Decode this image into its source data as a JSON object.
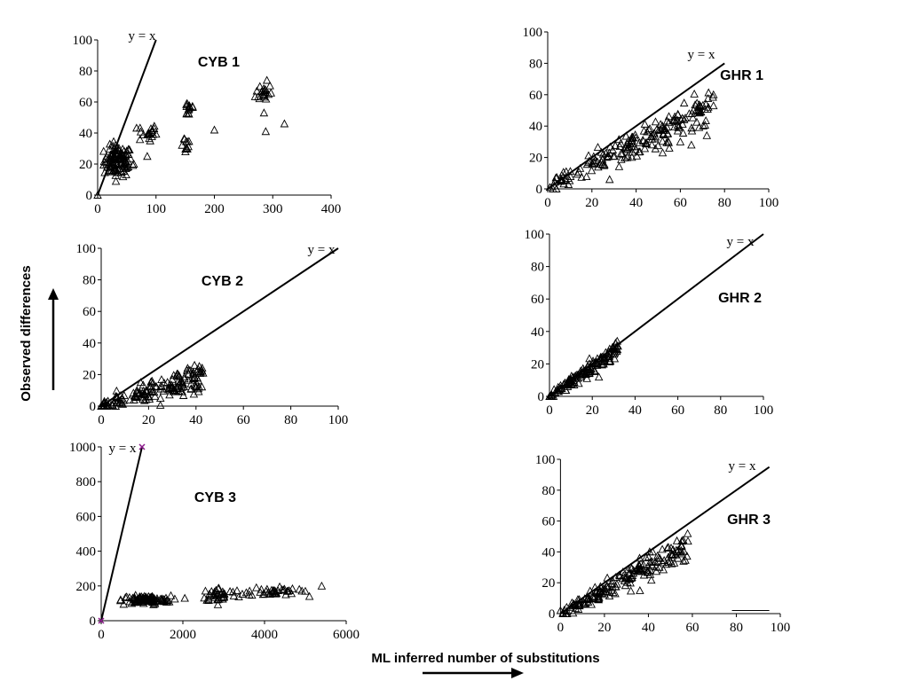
{
  "figure": {
    "ylabel": "Observed differences",
    "xlabel": "ML inferred number of substitutions"
  },
  "chart_data": [
    {
      "id": "cyb1",
      "type": "scatter",
      "title": "CYB 1",
      "ref_label": "y = x",
      "xlim": [
        0,
        400
      ],
      "ylim": [
        0,
        100
      ],
      "xticks": [
        "0",
        "100",
        "200",
        "300",
        "400"
      ],
      "yticks": [
        "0",
        "20",
        "40",
        "60",
        "80",
        "100"
      ],
      "ref_line": [
        [
          0,
          0
        ],
        [
          100,
          100
        ]
      ],
      "clusters": [
        {
          "cx": 35,
          "cy": 22,
          "sx": 12,
          "sy": 5,
          "n": 110
        },
        {
          "cx": 85,
          "cy": 40,
          "sx": 8,
          "sy": 3,
          "n": 20
        },
        {
          "cx": 150,
          "cy": 33,
          "sx": 5,
          "sy": 3,
          "n": 12
        },
        {
          "cx": 157,
          "cy": 56,
          "sx": 5,
          "sy": 3,
          "n": 15
        },
        {
          "cx": 285,
          "cy": 66,
          "sx": 7,
          "sy": 3,
          "n": 18
        }
      ],
      "points": [
        [
          0,
          0
        ],
        [
          200,
          42
        ],
        [
          278,
          70
        ],
        [
          290,
          74
        ],
        [
          285,
          53
        ],
        [
          288,
          41
        ],
        [
          320,
          46
        ],
        [
          85,
          25
        ],
        [
          90,
          35
        ],
        [
          62,
          20
        ]
      ]
    },
    {
      "id": "ghr1",
      "type": "scatter",
      "title": "GHR 1",
      "ref_label": "y = x",
      "xlim": [
        0,
        100
      ],
      "ylim": [
        0,
        100
      ],
      "xticks": [
        "0",
        "20",
        "40",
        "60",
        "80",
        "100"
      ],
      "yticks": [
        "0",
        "20",
        "40",
        "60",
        "80",
        "100"
      ],
      "ref_line": [
        [
          0,
          0
        ],
        [
          80,
          80
        ]
      ],
      "band": {
        "x0": 2,
        "x1": 75,
        "slope": 0.73,
        "spread": 3.5,
        "n": 190
      },
      "points": [
        [
          1,
          1
        ],
        [
          3,
          2
        ],
        [
          28,
          6
        ],
        [
          52,
          23
        ],
        [
          55,
          26
        ],
        [
          60,
          30
        ],
        [
          65,
          28
        ],
        [
          72,
          34
        ],
        [
          75,
          53
        ],
        [
          75,
          60
        ],
        [
          68,
          50
        ],
        [
          38,
          30
        ]
      ]
    },
    {
      "id": "cyb2",
      "type": "scatter",
      "title": "CYB 2",
      "ref_label": "y = x",
      "xlim": [
        0,
        100
      ],
      "ylim": [
        0,
        100
      ],
      "xticks": [
        "0",
        "20",
        "40",
        "60",
        "80",
        "100"
      ],
      "yticks": [
        "0",
        "20",
        "40",
        "60",
        "80",
        "100"
      ],
      "ref_line": [
        [
          0,
          0
        ],
        [
          100,
          100
        ]
      ],
      "band": {
        "x0": 0,
        "x1": 43,
        "slope": 0.45,
        "spread": 3,
        "n": 160
      },
      "points": [
        [
          0,
          0
        ],
        [
          40,
          12
        ],
        [
          42,
          22
        ],
        [
          43,
          21
        ],
        [
          25,
          5
        ],
        [
          30,
          17
        ]
      ]
    },
    {
      "id": "ghr2",
      "type": "scatter",
      "title": "GHR 2",
      "ref_label": "y = x",
      "xlim": [
        0,
        100
      ],
      "ylim": [
        0,
        100
      ],
      "xticks": [
        "0",
        "20",
        "40",
        "60",
        "80",
        "100"
      ],
      "yticks": [
        "0",
        "20",
        "40",
        "60",
        "80",
        "100"
      ],
      "ref_line": [
        [
          0,
          0
        ],
        [
          100,
          100
        ]
      ],
      "band": {
        "x0": 0,
        "x1": 32,
        "slope": 0.93,
        "spread": 1.8,
        "n": 130
      },
      "points": [
        [
          0,
          0
        ],
        [
          1,
          1
        ],
        [
          30,
          30
        ],
        [
          32,
          31
        ]
      ]
    },
    {
      "id": "cyb3",
      "type": "scatter",
      "title": "CYB 3",
      "ref_label": "y = x",
      "xlim": [
        0,
        6000
      ],
      "ylim": [
        0,
        1000
      ],
      "xticks": [
        "0",
        "2000",
        "4000",
        "6000"
      ],
      "yticks": [
        "0",
        "200",
        "400",
        "600",
        "800",
        "1000"
      ],
      "ref_line": [
        [
          0,
          0
        ],
        [
          1000,
          1000
        ]
      ],
      "clusters": [
        {
          "cx": 1100,
          "cy": 120,
          "sx": 300,
          "sy": 12,
          "n": 100
        },
        {
          "cx": 2900,
          "cy": 150,
          "sx": 220,
          "sy": 20,
          "n": 40
        },
        {
          "cx": 4200,
          "cy": 170,
          "sx": 300,
          "sy": 14,
          "n": 40
        }
      ],
      "points": [
        [
          5000,
          170
        ],
        [
          5100,
          140
        ],
        [
          5400,
          200
        ],
        [
          550,
          95
        ],
        [
          700,
          110
        ]
      ],
      "marker_points": [
        [
          0,
          0
        ],
        [
          1000,
          1000
        ]
      ]
    },
    {
      "id": "ghr3",
      "type": "scatter",
      "title": "GHR 3",
      "ref_label": "y = x",
      "xlim": [
        -5,
        100
      ],
      "ylim": [
        0,
        100
      ],
      "xticks": [
        "0",
        "20",
        "40",
        "60",
        "80",
        "100"
      ],
      "yticks": [
        "0",
        "20",
        "40",
        "60",
        "80",
        "100"
      ],
      "ref_line": [
        [
          0,
          0
        ],
        [
          95,
          95
        ]
      ],
      "band": {
        "x0": -2,
        "x1": 58,
        "slope": 0.76,
        "spread": 3,
        "n": 180
      },
      "points": [
        [
          -2,
          3
        ],
        [
          0,
          2
        ],
        [
          32,
          30
        ],
        [
          36,
          36
        ],
        [
          38,
          25
        ],
        [
          56,
          34
        ],
        [
          58,
          47
        ],
        [
          45,
          30
        ]
      ],
      "segment": [
        [
          78,
          2
        ],
        [
          95,
          2
        ]
      ]
    }
  ]
}
